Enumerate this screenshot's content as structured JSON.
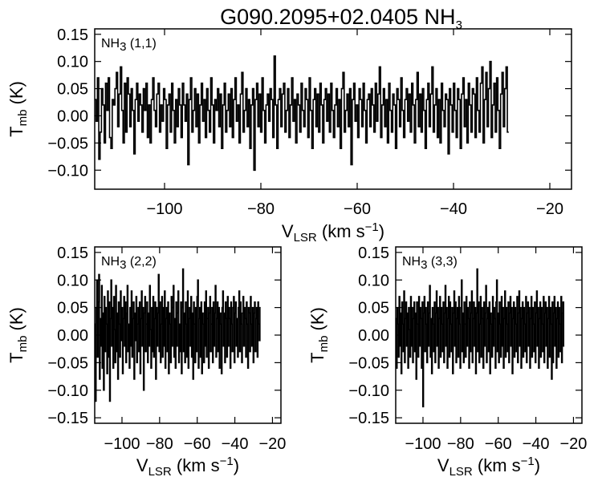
{
  "figure": {
    "title": "G090.2095+02.0405 NH",
    "title_subscript": "3"
  },
  "chart_data": [
    {
      "type": "line",
      "style": "histogram-step",
      "panel": "top",
      "label": "NH",
      "label_subscript": "3",
      "label_suffix": " (1,1)",
      "xlabel": "V",
      "xlabel_subscript": "LSR",
      "xlabel_unit": " (km s",
      "xlabel_superscript": "−1",
      "xlabel_close": ")",
      "ylabel": "T",
      "ylabel_subscript": "mb",
      "ylabel_unit": " (K)",
      "xlim": [
        -114.5,
        -15.5
      ],
      "ylim": [
        -0.135,
        0.16
      ],
      "x_ticks": [
        -100,
        -80,
        -60,
        -40,
        -20
      ],
      "x_tick_labels": [
        "−100",
        "−80",
        "−60",
        "−40",
        "−20"
      ],
      "y_ticks": [
        0.15,
        0.1,
        0.05,
        0.0,
        -0.05,
        -0.1
      ],
      "y_tick_labels": [
        "0.15",
        "0.10",
        "0.05",
        "0.00",
        "−0.05",
        "−0.10"
      ],
      "x_start": -114.5,
      "x_step": 0.28,
      "values": [
        0.03,
        -0.01,
        0.07,
        -0.08,
        -0.03,
        0.05,
        0.02,
        -0.05,
        0.06,
        0.01,
        0.07,
        -0.04,
        -0.06,
        0.03,
        0.02,
        0.05,
        0.08,
        -0.02,
        0.04,
        0.09,
        0.01,
        -0.05,
        0.06,
        -0.03,
        0.07,
        0.04,
        -0.02,
        0.05,
        0.01,
        -0.07,
        0.03,
        0.06,
        -0.01,
        0.04,
        0.02,
        -0.03,
        0.05,
        0.01,
        0.06,
        -0.04,
        0.02,
        -0.05,
        0.03,
        0.07,
        0.01,
        -0.02,
        0.04,
        0.06,
        -0.03,
        0.02,
        -0.01,
        0.05,
        0.03,
        -0.06,
        0.02,
        0.04,
        -0.03,
        0.06,
        0.01,
        -0.05,
        0.03,
        -0.02,
        0.05,
        0.02,
        -0.04,
        0.06,
        0.02,
        -0.01,
        0.04,
        -0.09,
        0.03,
        0.07,
        -0.03,
        0.01,
        0.05,
        -0.02,
        0.04,
        -0.05,
        0.02,
        0.06,
        -0.01,
        0.03,
        -0.04,
        0.05,
        0.01,
        -0.03,
        0.07,
        0.02,
        -0.05,
        0.03,
        0.01,
        0.05,
        -0.02,
        0.04,
        -0.06,
        0.02,
        0.06,
        -0.03,
        0.01,
        0.04,
        -0.02,
        0.05,
        -0.04,
        0.03,
        0.07,
        -0.01,
        0.02,
        -0.05,
        0.04,
        0.08,
        -0.03,
        0.01,
        0.05,
        -0.02,
        0.03,
        -0.06,
        0.02,
        0.05,
        -0.1,
        0.03,
        0.06,
        -0.02,
        0.04,
        -0.03,
        0.07,
        0.01,
        -0.05,
        0.02,
        0.04,
        -0.01,
        0.05,
        0.03,
        -0.04,
        0.11,
        0.02,
        -0.06,
        0.03,
        0.05,
        -0.02,
        0.04,
        0.06,
        -0.03,
        0.01,
        0.05,
        -0.04,
        0.02,
        0.07,
        -0.01,
        0.03,
        -0.05,
        0.04,
        0.02,
        -0.03,
        0.06,
        0.01,
        -0.02,
        0.05,
        0.03,
        -0.04,
        0.07,
        0.01,
        -0.06,
        0.03,
        0.05,
        -0.02,
        0.04,
        -0.03,
        0.06,
        0.02,
        -0.05,
        0.03,
        0.05,
        -0.01,
        0.04,
        -0.03,
        0.06,
        0.01,
        -0.04,
        0.02,
        0.05,
        -0.02,
        0.03,
        -0.06,
        0.05,
        0.08,
        -0.03,
        0.01,
        0.04,
        -0.02,
        0.05,
        -0.09,
        0.03,
        0.06,
        -0.01,
        0.02,
        -0.04,
        0.05,
        0.03,
        -0.02,
        0.06,
        0.01,
        -0.05,
        0.03,
        0.04,
        -0.02,
        0.05,
        0.02,
        -0.03,
        0.06,
        -0.01,
        0.04,
        0.09,
        -0.04,
        0.02,
        0.05,
        -0.02,
        0.03,
        -0.05,
        0.06,
        0.01,
        -0.03,
        0.04,
        0.02,
        -0.06,
        0.05,
        0.03,
        -0.02,
        0.07,
        0.01,
        -0.04,
        0.03,
        0.05,
        -0.01,
        0.04,
        -0.03,
        0.06,
        0.02,
        -0.05,
        0.03,
        0.08,
        -0.02,
        0.04,
        -0.03,
        0.05,
        0.01,
        -0.06,
        0.03,
        0.06,
        -0.02,
        0.04,
        0.09,
        -0.03,
        0.02,
        0.05,
        -0.04,
        0.03,
        -0.05,
        0.06,
        0.01,
        -0.02,
        0.04,
        0.03,
        -0.07,
        0.05,
        0.02,
        -0.03,
        0.06,
        0.01,
        -0.04,
        0.05,
        0.03,
        -0.06,
        0.04,
        0.07,
        -0.02,
        0.03,
        -0.05,
        0.06,
        0.02,
        -0.03,
        0.05,
        0.04,
        -0.04,
        0.07,
        0.01,
        -0.03,
        0.06,
        0.09,
        -0.05,
        0.03,
        0.08,
        -0.02,
        0.05,
        0.1,
        -0.04,
        0.02,
        0.06,
        -0.03,
        0.07,
        0.01,
        -0.06,
        0.04,
        0.08,
        -0.02,
        0.05,
        0.09,
        -0.03
      ]
    },
    {
      "type": "line",
      "style": "histogram-step",
      "panel": "bottom-left",
      "label": "NH",
      "label_subscript": "3",
      "label_suffix": " (2,2)",
      "xlabel": "V",
      "xlabel_subscript": "LSR",
      "xlabel_unit": " (km s",
      "xlabel_superscript": "−1",
      "xlabel_close": ")",
      "ylabel": "T",
      "ylabel_subscript": "mb",
      "ylabel_unit": " (K)",
      "xlim": [
        -114.5,
        -15.5
      ],
      "ylim": [
        -0.16,
        0.16
      ],
      "x_ticks": [
        -100,
        -80,
        -60,
        -40,
        -20
      ],
      "x_tick_labels": [
        "−100",
        "−80",
        "−60",
        "−40",
        "−20"
      ],
      "y_ticks": [
        0.15,
        0.1,
        0.05,
        0.0,
        -0.05,
        -0.1,
        -0.15
      ],
      "y_tick_labels": [
        "0.15",
        "0.10",
        "0.05",
        "0.00",
        "−0.05",
        "−0.10",
        "−0.15"
      ],
      "x_start": -114.5,
      "x_step": 0.36,
      "values": [
        0.02,
        -0.12,
        0.05,
        0.1,
        -0.04,
        0.06,
        0.11,
        -0.08,
        0.03,
        -0.02,
        0.09,
        -0.06,
        0.04,
        -0.1,
        0.07,
        -0.03,
        0.05,
        0.02,
        -0.07,
        0.08,
        -0.04,
        0.06,
        -0.12,
        0.03,
        0.1,
        -0.02,
        0.05,
        -0.06,
        0.07,
        0.01,
        -0.05,
        0.09,
        -0.03,
        0.04,
        -0.08,
        0.06,
        0.02,
        -0.04,
        0.08,
        -0.01,
        0.05,
        -0.07,
        0.03,
        0.07,
        -0.02,
        0.06,
        -0.05,
        0.04,
        0.09,
        -0.03,
        0.02,
        -0.06,
        0.05,
        -0.02,
        0.08,
        -0.04,
        0.03,
        0.06,
        -0.08,
        0.04,
        -0.01,
        0.07,
        -0.05,
        0.02,
        0.05,
        -0.03,
        0.06,
        -0.07,
        0.03,
        0.08,
        -0.02,
        0.05,
        -0.1,
        0.04,
        0.07,
        -0.03,
        0.02,
        0.06,
        -0.05,
        0.04,
        -0.02,
        0.09,
        0.01,
        -0.06,
        0.05,
        -0.03,
        0.07,
        -0.04,
        0.03,
        0.06,
        -0.08,
        0.05,
        -0.02,
        0.04,
        0.11,
        -0.03,
        0.06,
        -0.05,
        0.02,
        0.07,
        -0.04,
        0.05,
        -0.02,
        0.08,
        -0.06,
        0.03,
        0.05,
        -0.03,
        0.06,
        -0.07,
        0.04,
        0.02,
        -0.05,
        0.07,
        -0.02,
        0.05,
        0.09,
        -0.04,
        0.03,
        -0.06,
        0.06,
        -0.02,
        0.04,
        0.08,
        -0.05,
        0.02,
        -0.03,
        0.06,
        -0.07,
        0.05,
        0.12,
        -0.03,
        0.04,
        -0.05,
        0.06,
        0.02,
        -0.04,
        0.08,
        -0.06,
        0.03,
        0.05,
        -0.02,
        0.07,
        -0.04,
        0.04,
        -0.08,
        0.06,
        0.02,
        -0.05,
        0.05,
        -0.03,
        0.07,
        0.1,
        -0.06,
        0.03,
        0.05,
        -0.04,
        0.06,
        -0.07,
        0.04,
        0.02,
        -0.05,
        0.06,
        -0.02,
        0.08,
        -0.04,
        0.03,
        0.05,
        -0.06,
        0.04,
        0.07,
        -0.03,
        0.02,
        0.05,
        -0.05,
        0.06,
        -0.02,
        0.04,
        0.09,
        -0.04,
        0.03,
        0.06,
        -0.03,
        0.05,
        -0.06,
        0.04,
        0.02,
        -0.07,
        0.05,
        0.08,
        -0.02,
        0.04,
        -0.05,
        0.06,
        0.03,
        -0.04,
        0.07,
        -0.02,
        0.05,
        0.03,
        -0.06,
        0.06,
        0.02,
        -0.03,
        0.05,
        0.07,
        -0.05,
        0.04,
        0.06,
        -0.02,
        0.03,
        -0.04,
        0.05,
        0.08,
        -0.03,
        0.06,
        0.02,
        -0.05,
        0.04,
        0.07,
        -0.02,
        0.05,
        0.03,
        -0.04,
        0.06,
        0.02,
        -0.06,
        0.05,
        0.04,
        -0.03,
        0.07,
        0.02,
        -0.02,
        0.05,
        -0.05,
        0.04,
        0.06,
        -0.03,
        0.03,
        0.05,
        -0.04,
        0.06,
        0.02,
        -0.01,
        0.05
      ]
    },
    {
      "type": "line",
      "style": "histogram-step",
      "panel": "bottom-right",
      "label": "NH",
      "label_subscript": "3",
      "label_suffix": " (3,3)",
      "xlabel": "V",
      "xlabel_subscript": "LSR",
      "xlabel_unit": " (km s",
      "xlabel_superscript": "−1",
      "xlabel_close": ")",
      "ylabel": "T",
      "ylabel_subscript": "mb",
      "ylabel_unit": " (K)",
      "xlim": [
        -114.5,
        -15.5
      ],
      "ylim": [
        -0.16,
        0.16
      ],
      "x_ticks": [
        -100,
        -80,
        -60,
        -40,
        -20
      ],
      "x_tick_labels": [
        "−100",
        "−80",
        "−60",
        "−40",
        "−20"
      ],
      "y_ticks": [
        0.15,
        0.1,
        0.05,
        0.0,
        -0.05,
        -0.1,
        -0.15
      ],
      "y_tick_labels": [
        "0.15",
        "0.10",
        "0.05",
        "0.00",
        "−0.05",
        "−0.10",
        "−0.15"
      ],
      "x_start": -114.5,
      "x_step": 0.36,
      "values": [
        0.03,
        -0.06,
        0.05,
        0.02,
        -0.04,
        0.07,
        -0.02,
        0.04,
        -0.07,
        0.06,
        0.02,
        -0.03,
        0.08,
        -0.05,
        0.03,
        0.06,
        -0.02,
        0.04,
        -0.06,
        0.05,
        0.01,
        -0.04,
        0.07,
        -0.02,
        0.05,
        -0.05,
        0.03,
        0.06,
        -0.03,
        0.04,
        -0.08,
        0.06,
        0.02,
        -0.04,
        0.07,
        -0.02,
        0.05,
        0.03,
        -0.06,
        0.06,
        -0.13,
        0.04,
        0.07,
        -0.03,
        0.05,
        0.02,
        -0.05,
        0.06,
        -0.02,
        0.04,
        0.09,
        -0.04,
        0.03,
        -0.07,
        0.05,
        0.02,
        -0.03,
        0.06,
        -0.05,
        0.04,
        0.08,
        -0.02,
        0.05,
        -0.06,
        0.03,
        0.07,
        -0.04,
        0.05,
        0.02,
        -0.03,
        0.06,
        -0.05,
        0.04,
        0.09,
        -0.02,
        0.05,
        -0.06,
        0.03,
        0.07,
        -0.04,
        0.06,
        0.02,
        -0.03,
        0.05,
        -0.07,
        0.04,
        0.08,
        -0.02,
        0.06,
        -0.05,
        0.03,
        0.05,
        -0.04,
        0.07,
        0.02,
        -0.06,
        0.05,
        0.1,
        -0.03,
        0.04,
        -0.05,
        0.06,
        0.02,
        -0.04,
        0.07,
        -0.02,
        0.05,
        0.03,
        -0.06,
        0.06,
        -0.03,
        0.04,
        0.08,
        -0.05,
        0.03,
        0.06,
        -0.02,
        0.05,
        -0.07,
        0.04,
        0.12,
        -0.03,
        0.06,
        -0.05,
        0.02,
        0.07,
        -0.04,
        0.05,
        0.03,
        -0.06,
        0.06,
        -0.02,
        0.04,
        0.09,
        -0.05,
        0.03,
        0.05,
        -0.03,
        0.06,
        -0.07,
        0.04,
        0.02,
        -0.04,
        0.07,
        -0.02,
        0.05,
        0.03,
        -0.06,
        0.06,
        0.1,
        -0.03,
        0.04,
        -0.05,
        0.06,
        0.02,
        -0.04,
        0.07,
        -0.02,
        0.05,
        -0.06,
        0.03,
        0.08,
        -0.04,
        0.05,
        0.02,
        -0.03,
        0.06,
        -0.05,
        0.04,
        0.07,
        -0.02,
        0.05,
        -0.07,
        0.03,
        0.06,
        -0.04,
        0.05,
        0.02,
        -0.03,
        0.07,
        -0.05,
        0.04,
        0.08,
        -0.02,
        0.05,
        -0.06,
        0.03,
        0.06,
        -0.04,
        0.05,
        0.02,
        -0.03,
        0.07,
        -0.05,
        0.04,
        0.06,
        -0.02,
        0.05,
        -0.06,
        0.03,
        0.07,
        -0.04,
        0.05,
        0.02,
        -0.03,
        0.06,
        -0.05,
        0.04,
        0.08,
        -0.02,
        0.05,
        -0.06,
        0.03,
        0.06,
        -0.04,
        0.05,
        0.02,
        -0.03,
        0.07,
        -0.05,
        0.04,
        0.06,
        -0.02,
        0.05,
        -0.06,
        0.03,
        0.07,
        -0.04,
        0.05,
        0.02,
        -0.08,
        0.06,
        -0.05,
        0.04,
        0.07,
        -0.02,
        0.05,
        -0.06,
        0.03,
        0.06,
        -0.04,
        0.05,
        0.02,
        -0.03,
        0.07,
        -0.05,
        0.04,
        0.06,
        -0.02
      ]
    }
  ]
}
